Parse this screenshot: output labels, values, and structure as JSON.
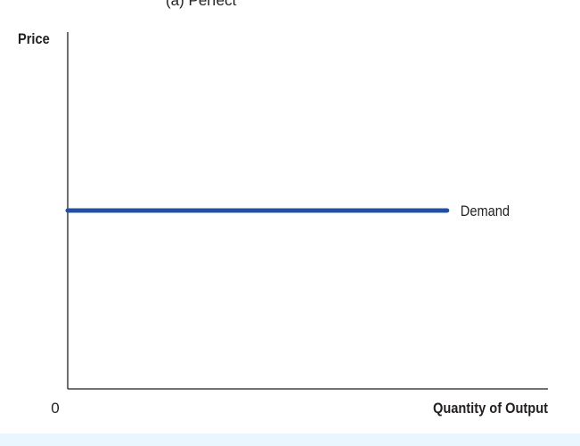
{
  "header": {
    "clipped_text": "(a) Perfect"
  },
  "colors": {
    "demand_line": "#2150a0",
    "axis": "#231f20",
    "text": "#231f20",
    "bottom_strip": "#eaf6fd"
  },
  "chart_data": {
    "type": "line",
    "title": "",
    "xlabel": "Quantity of Output",
    "ylabel": "Price",
    "origin_label": "0",
    "xlim": [
      0,
      100
    ],
    "ylim": [
      0,
      100
    ],
    "grid": false,
    "x_ticks": [],
    "y_ticks": [],
    "series": [
      {
        "name": "Demand",
        "x": [
          0,
          79
        ],
        "y": [
          50,
          50
        ]
      }
    ]
  }
}
